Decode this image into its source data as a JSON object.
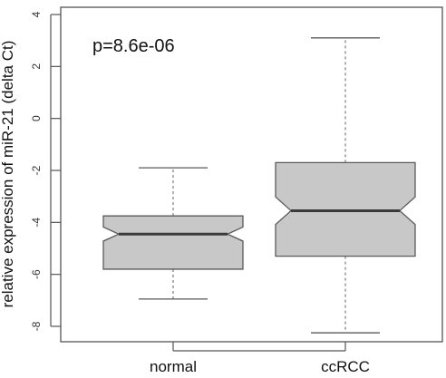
{
  "chart_data": {
    "type": "boxplot",
    "notched": true,
    "annotation": "p=8.6e-06",
    "xlabel": "",
    "ylabel": "relative expression of miR-21 (delta Ct)",
    "ylim": [
      -8.5,
      4.2
    ],
    "yticks": [
      4,
      2,
      0,
      -2,
      -4,
      -6,
      -8
    ],
    "categories": [
      "normal",
      "ccRCC"
    ],
    "boxes": [
      {
        "label": "normal",
        "whisker_low": -6.95,
        "q1": -5.8,
        "median": -4.45,
        "q3": -3.75,
        "whisker_high": -1.9,
        "notch_low": -4.72,
        "notch_high": -4.18
      },
      {
        "label": "ccRCC",
        "whisker_low": -8.25,
        "q1": -5.3,
        "median": -3.55,
        "q3": -1.7,
        "whisker_high": 3.1,
        "notch_low": -4.08,
        "notch_high": -3.02
      }
    ],
    "colors": {
      "box_fill": "#c8c8c8",
      "box_stroke": "#5a5a5a",
      "median": "#3a3a3a",
      "whisker": "#6e6e6e",
      "axis": "#555555"
    }
  }
}
